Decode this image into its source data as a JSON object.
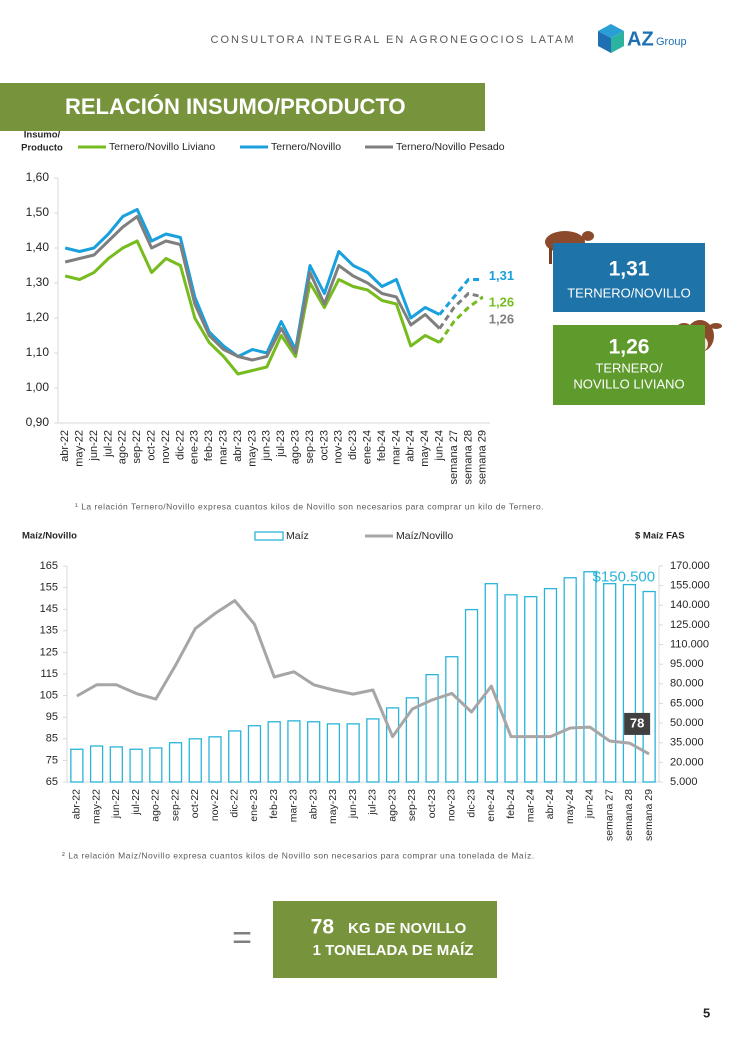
{
  "header": {
    "tagline": "CONSULTORA INTEGRAL EN AGRONEGOCIOS LATAM",
    "logo": "AZ",
    "logo_sub": "Group"
  },
  "section_title": "RELACIÓN INSUMO/PRODUCTO",
  "chart_data": [
    {
      "type": "line",
      "y_label": [
        "Insumo/",
        "Producto"
      ],
      "categories": [
        "abr-22",
        "may-22",
        "jun-22",
        "jul-22",
        "ago-22",
        "sep-22",
        "oct-22",
        "nov-22",
        "dic-22",
        "ene-23",
        "feb-23",
        "mar-23",
        "abr-23",
        "may-23",
        "jun-23",
        "jul-23",
        "ago-23",
        "sep-23",
        "oct-23",
        "nov-23",
        "dic-23",
        "ene-24",
        "feb-24",
        "mar-24",
        "abr-24",
        "may-24",
        "jun-24",
        "semana 27",
        "semana 28",
        "semana 29"
      ],
      "series": [
        {
          "name": "Ternero/Novillo Liviano",
          "color": "#77bc1f",
          "values": [
            1.32,
            1.31,
            1.33,
            1.37,
            1.4,
            1.42,
            1.33,
            1.37,
            1.35,
            1.2,
            1.13,
            1.09,
            1.04,
            1.05,
            1.06,
            1.15,
            1.09,
            1.3,
            1.23,
            1.31,
            1.29,
            1.28,
            1.25,
            1.24,
            1.12,
            1.15,
            1.13,
            1.19,
            1.23,
            1.26
          ],
          "value_labels": [
            null,
            null,
            null,
            null,
            null,
            null,
            null,
            null,
            null,
            null,
            null,
            null,
            null,
            null,
            null,
            null,
            null,
            null,
            null,
            null,
            null,
            null,
            null,
            null,
            null,
            null,
            null,
            null,
            null,
            "1,26"
          ]
        },
        {
          "name": "Ternero/Novillo",
          "color": "#1aa0dc",
          "values": [
            1.4,
            1.39,
            1.4,
            1.44,
            1.49,
            1.51,
            1.42,
            1.44,
            1.43,
            1.26,
            1.16,
            1.12,
            1.09,
            1.11,
            1.1,
            1.19,
            1.11,
            1.35,
            1.27,
            1.39,
            1.35,
            1.33,
            1.29,
            1.31,
            1.2,
            1.23,
            1.21,
            1.26,
            1.31,
            1.31
          ],
          "value_labels": [
            null,
            null,
            null,
            null,
            null,
            null,
            null,
            null,
            null,
            null,
            null,
            null,
            null,
            null,
            null,
            null,
            null,
            null,
            null,
            null,
            null,
            null,
            null,
            null,
            null,
            null,
            null,
            null,
            null,
            "1,31"
          ]
        },
        {
          "name": "Ternero/Novillo Pesado",
          "color": "#7f7f7f",
          "values": [
            1.36,
            1.37,
            1.38,
            1.42,
            1.46,
            1.49,
            1.4,
            1.42,
            1.41,
            1.24,
            1.15,
            1.11,
            1.09,
            1.08,
            1.09,
            1.17,
            1.1,
            1.33,
            1.24,
            1.35,
            1.32,
            1.3,
            1.27,
            1.26,
            1.18,
            1.21,
            1.17,
            1.23,
            1.27,
            1.26
          ],
          "value_labels": [
            null,
            null,
            null,
            null,
            null,
            null,
            null,
            null,
            null,
            null,
            null,
            null,
            null,
            null,
            null,
            null,
            null,
            null,
            null,
            null,
            null,
            null,
            null,
            null,
            null,
            null,
            null,
            null,
            null,
            "1,26"
          ]
        }
      ],
      "ylim": [
        0.9,
        1.6
      ],
      "yticks": [
        {
          "value": 0.9,
          "label": "0,90"
        },
        {
          "value": 1.0,
          "label": "1,00"
        },
        {
          "value": 1.1,
          "label": "1,10"
        },
        {
          "value": 1.2,
          "label": "1,20"
        },
        {
          "value": 1.3,
          "label": "1,30"
        },
        {
          "value": 1.4,
          "label": "1,40"
        },
        {
          "value": 1.5,
          "label": "1,50"
        },
        {
          "value": 1.6,
          "label": "1,60"
        }
      ],
      "dashed_from": 26,
      "grid": false
    },
    {
      "type": "bar_line",
      "y_label": "Maíz/Novillo",
      "y2_label": "$ Maíz FAS",
      "categories": [
        "abr-22",
        "may-22",
        "jun-22",
        "jul-22",
        "ago-22",
        "sep-22",
        "oct-22",
        "nov-22",
        "dic-22",
        "ene-23",
        "feb-23",
        "mar-23",
        "abr-23",
        "may-23",
        "jun-23",
        "jul-23",
        "ago-23",
        "sep-23",
        "oct-23",
        "nov-23",
        "dic-23",
        "ene-24",
        "feb-24",
        "mar-24",
        "abr-24",
        "may-24",
        "jun-24",
        "semana 27",
        "semana 28",
        "semana 29"
      ],
      "series": [
        {
          "name": "Maíz",
          "type": "bar",
          "axis": "y2",
          "color": "#29b5d9",
          "values": [
            30000,
            32500,
            31800,
            30000,
            31000,
            35000,
            38000,
            39500,
            44000,
            48000,
            51000,
            51700,
            51000,
            49400,
            49400,
            53200,
            61600,
            69300,
            87000,
            100700,
            136700,
            156500,
            148000,
            146600,
            152700,
            161000,
            165600,
            156500,
            155800,
            150500
          ],
          "value_labels": [
            null,
            null,
            null,
            null,
            null,
            null,
            null,
            null,
            null,
            null,
            null,
            null,
            null,
            null,
            null,
            null,
            null,
            null,
            null,
            null,
            null,
            null,
            null,
            null,
            null,
            null,
            null,
            null,
            null,
            "$150.500"
          ]
        },
        {
          "name": "Maíz/Novillo",
          "type": "line",
          "color": "#a6a6a6",
          "values": [
            104.8,
            110,
            110,
            106,
            103.4,
            119,
            136,
            143,
            149,
            138,
            113.6,
            116,
            110,
            107.6,
            105.7,
            107.6,
            86,
            98.8,
            103,
            106,
            97.4,
            109.4,
            86,
            86,
            86,
            90,
            90.4,
            84,
            83,
            78
          ],
          "label_last": true
        }
      ],
      "ylim": [
        65,
        165
      ],
      "yticks": [
        65,
        75,
        85,
        95,
        105,
        115,
        125,
        135,
        145,
        155,
        165
      ],
      "y2lim": [
        5000,
        170000
      ],
      "y2ticks": [
        {
          "value": 5000,
          "label": "5.000"
        },
        {
          "value": 20000,
          "label": "20.000"
        },
        {
          "value": 35000,
          "label": "35.000"
        },
        {
          "value": 50000,
          "label": "50.000"
        },
        {
          "value": 65000,
          "label": "65.000"
        },
        {
          "value": 80000,
          "label": "80.000"
        },
        {
          "value": 95000,
          "label": "95.000"
        },
        {
          "value": 110000,
          "label": "110.000"
        },
        {
          "value": 125000,
          "label": "125.000"
        },
        {
          "value": 140000,
          "label": "140.000"
        },
        {
          "value": 155000,
          "label": "155.000"
        },
        {
          "value": 170000,
          "label": "170.000"
        }
      ],
      "grid": false
    }
  ],
  "callouts": [
    {
      "value": "1,31",
      "label": [
        "TERNERO/NOVILLO"
      ]
    },
    {
      "value": "1,26",
      "label": [
        "TERNERO/",
        "NOVILLO LIVIANO"
      ]
    }
  ],
  "footnotes": [
    "¹ La relación Ternero/Novillo expresa cuantos kilos de Novillo son necesarios para comprar un kilo de Ternero.",
    "² La relación Maíz/Novillo expresa cuantos kilos de Novillo son necesarios para comprar una tonelada de Maíz."
  ],
  "summary": {
    "value": 78,
    "unit": "KG DE NOVILLO",
    "line2": "1 TONELADA DE MAÍZ"
  },
  "page_number": 5
}
